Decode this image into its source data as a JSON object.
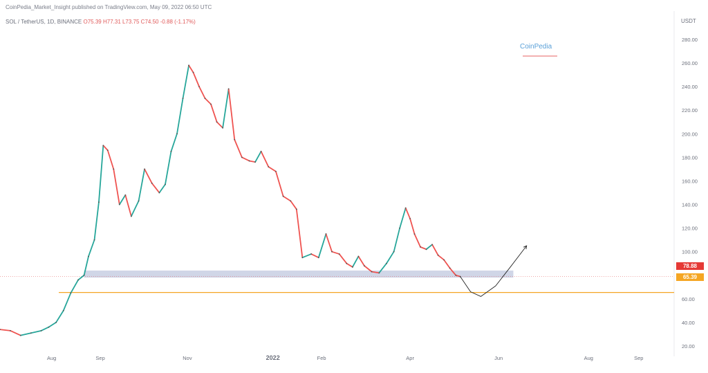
{
  "header": {
    "publisher": "CoinPedia_Market_Insight published on TradingView.com, May 09, 2022 06:50 UTC",
    "symbol": "SOL / TetherUS, 1D, BINANCE",
    "ohlc": "O75.39 H77.31 L73.75 C74.50 -0.88 (-1.17%)"
  },
  "watermark": {
    "logo_text": "CoinPedia"
  },
  "axis_unit": "USDT",
  "price_tags": {
    "current": "78.88",
    "support": "65.39"
  },
  "colors": {
    "up": "#26a69a",
    "down": "#ef5350",
    "support_line": "#f5a623",
    "zone": "#c8cfe3",
    "current_line": "#e57373",
    "projection": "#222222"
  },
  "chart_data": {
    "type": "line",
    "title": "SOL / TetherUS, 1D, BINANCE",
    "xlabel": "",
    "ylabel": "USDT",
    "x_ticks": [
      "Aug",
      "Sep",
      "Nov",
      "2022",
      "Feb",
      "Apr",
      "Jun",
      "Aug",
      "Sep"
    ],
    "y_ticks": [
      "280.00",
      "260.00",
      "240.00",
      "220.00",
      "200.00",
      "180.00",
      "160.00",
      "140.00",
      "120.00",
      "100.00",
      "80.00",
      "60.00",
      "40.00",
      "20.00"
    ],
    "ylim": [
      20,
      287
    ],
    "x_range": [
      "2021-07-01",
      "2022-10-01"
    ],
    "grid": false,
    "series": [
      {
        "values": [
          [
            "2021-07-01",
            34
          ],
          [
            "2021-07-08",
            33
          ],
          [
            "2021-07-15",
            29
          ],
          [
            "2021-07-22",
            31
          ],
          [
            "2021-07-29",
            33
          ],
          [
            "2021-08-03",
            36
          ],
          [
            "2021-08-08",
            40
          ],
          [
            "2021-08-13",
            50
          ],
          [
            "2021-08-18",
            65
          ],
          [
            "2021-08-23",
            76
          ],
          [
            "2021-08-27",
            80
          ],
          [
            "2021-08-30",
            96
          ],
          [
            "2021-09-03",
            110
          ],
          [
            "2021-09-06",
            142
          ],
          [
            "2021-09-09",
            190
          ],
          [
            "2021-09-12",
            186
          ],
          [
            "2021-09-16",
            170
          ],
          [
            "2021-09-20",
            140
          ],
          [
            "2021-09-24",
            148
          ],
          [
            "2021-09-28",
            130
          ],
          [
            "2021-10-03",
            143
          ],
          [
            "2021-10-07",
            170
          ],
          [
            "2021-10-12",
            158
          ],
          [
            "2021-10-17",
            150
          ],
          [
            "2021-10-21",
            157
          ],
          [
            "2021-10-25",
            185
          ],
          [
            "2021-10-29",
            200
          ],
          [
            "2021-11-02",
            230
          ],
          [
            "2021-11-06",
            258
          ],
          [
            "2021-11-09",
            252
          ],
          [
            "2021-11-13",
            240
          ],
          [
            "2021-11-17",
            230
          ],
          [
            "2021-11-21",
            225
          ],
          [
            "2021-11-25",
            210
          ],
          [
            "2021-11-29",
            205
          ],
          [
            "2021-12-03",
            238
          ],
          [
            "2021-12-07",
            195
          ],
          [
            "2021-12-12",
            180
          ],
          [
            "2021-12-17",
            177
          ],
          [
            "2021-12-21",
            176
          ],
          [
            "2021-12-25",
            185
          ],
          [
            "2021-12-30",
            172
          ],
          [
            "2022-01-04",
            168
          ],
          [
            "2022-01-09",
            147
          ],
          [
            "2022-01-14",
            143
          ],
          [
            "2022-01-18",
            136
          ],
          [
            "2022-01-22",
            95
          ],
          [
            "2022-01-28",
            98
          ],
          [
            "2022-02-02",
            95
          ],
          [
            "2022-02-07",
            115
          ],
          [
            "2022-02-11",
            100
          ],
          [
            "2022-02-16",
            98
          ],
          [
            "2022-02-21",
            90
          ],
          [
            "2022-02-25",
            87
          ],
          [
            "2022-03-01",
            96
          ],
          [
            "2022-03-05",
            88
          ],
          [
            "2022-03-10",
            83
          ],
          [
            "2022-03-15",
            82
          ],
          [
            "2022-03-20",
            90
          ],
          [
            "2022-03-25",
            100
          ],
          [
            "2022-03-29",
            120
          ],
          [
            "2022-04-02",
            137
          ],
          [
            "2022-04-05",
            128
          ],
          [
            "2022-04-08",
            115
          ],
          [
            "2022-04-12",
            104
          ],
          [
            "2022-04-16",
            102
          ],
          [
            "2022-04-20",
            106
          ],
          [
            "2022-04-24",
            97
          ],
          [
            "2022-04-28",
            93
          ],
          [
            "2022-05-02",
            86
          ],
          [
            "2022-05-06",
            80
          ],
          [
            "2022-05-09",
            78.88
          ]
        ]
      }
    ],
    "projection": [
      [
        "2022-05-09",
        78.88
      ],
      [
        "2022-05-16",
        66
      ],
      [
        "2022-05-23",
        62
      ],
      [
        "2022-06-02",
        71
      ],
      [
        "2022-06-12",
        87
      ],
      [
        "2022-06-23",
        105
      ]
    ],
    "support_zone": {
      "x": [
        "2021-08-27",
        "2022-06-14"
      ],
      "y": [
        78,
        84
      ]
    },
    "support_level": 65.39,
    "current_price": 78.88
  }
}
